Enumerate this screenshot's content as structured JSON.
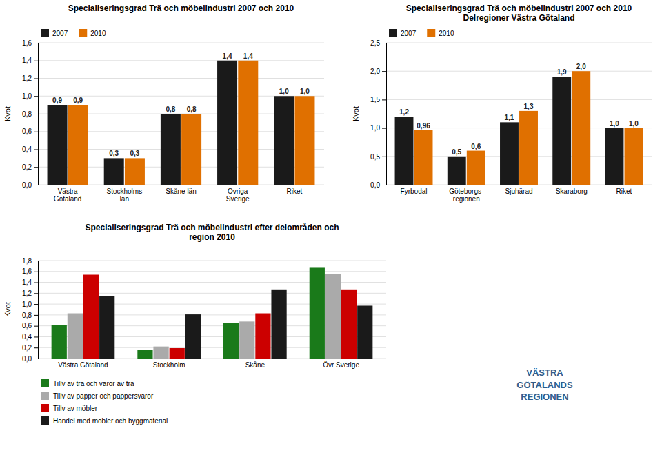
{
  "chart_data": [
    {
      "type": "bar",
      "title": "Specialiseringsgrad Trä och möbelindustri 2007 och 2010",
      "ylabel": "Kvot",
      "categories": [
        "Västra\nGötaland",
        "Stockholms\nlän",
        "Skåne län",
        "Övriga\nSverige",
        "Riket"
      ],
      "series": [
        {
          "name": "2007",
          "color": "#1a1a1a",
          "values": [
            0.9,
            0.3,
            0.8,
            1.4,
            1.0
          ],
          "value_labels": [
            "0,9",
            "0,3",
            "0,8",
            "1,4",
            "1,0"
          ]
        },
        {
          "name": "2010",
          "color": "#e07000",
          "values": [
            0.9,
            0.3,
            0.8,
            1.4,
            1.0
          ],
          "value_labels": [
            "0,9",
            "0,3",
            "0,8",
            "1,4",
            "1,0"
          ]
        }
      ],
      "ylim": [
        0,
        1.6
      ],
      "yticks": [
        {
          "value": 0.0,
          "label": "0,0"
        },
        {
          "value": 0.2,
          "label": "0,2"
        },
        {
          "value": 0.4,
          "label": "0,4"
        },
        {
          "value": 0.6,
          "label": "0,6"
        },
        {
          "value": 0.8,
          "label": "0,8"
        },
        {
          "value": 1.0,
          "label": "1,0"
        },
        {
          "value": 1.2,
          "label": "1,2"
        },
        {
          "value": 1.4,
          "label": "1,4"
        },
        {
          "value": 1.6,
          "label": "1,6"
        }
      ],
      "grid": true,
      "legend": "upper left",
      "data_labels": true
    },
    {
      "type": "bar",
      "title": "Specialiseringsgrad Trä och möbelindustri 2007 och 2010\nDelregioner Västra Götaland",
      "ylabel": "Kvot",
      "categories": [
        "Fyrbodal",
        "Göteborgs-\nregionen",
        "Sjuhärad",
        "Skaraborg",
        "Riket"
      ],
      "series": [
        {
          "name": "2007",
          "color": "#1a1a1a",
          "values": [
            1.2,
            0.5,
            1.1,
            1.9,
            1.0
          ],
          "value_labels": [
            "1,2",
            "0,5",
            "1,1",
            "1,9",
            "1,0"
          ]
        },
        {
          "name": "2010",
          "color": "#e07000",
          "values": [
            0.96,
            0.6,
            1.3,
            2.0,
            1.0
          ],
          "value_labels": [
            "0,96",
            "0,6",
            "1,3",
            "2,0",
            "1,0"
          ]
        }
      ],
      "ylim": [
        0,
        2.5
      ],
      "yticks": [
        {
          "value": 0.0,
          "label": "0,0"
        },
        {
          "value": 0.5,
          "label": "0,5"
        },
        {
          "value": 1.0,
          "label": "1,0"
        },
        {
          "value": 1.5,
          "label": "1,5"
        },
        {
          "value": 2.0,
          "label": "2,0"
        },
        {
          "value": 2.5,
          "label": "2,5"
        }
      ],
      "grid": true,
      "legend": "upper left",
      "data_labels": true
    },
    {
      "type": "bar",
      "title": "Specialiseringsgrad Trä och möbelindustri efter delområden och\nregion 2010",
      "ylabel": "Kvot",
      "categories": [
        "Västra Götaland",
        "Stockholm",
        "Skåne",
        "Övr Sverige"
      ],
      "series": [
        {
          "name": "Tillv av trä och varor av trä",
          "color": "#1a7a1a",
          "values": [
            0.61,
            0.16,
            0.65,
            1.68
          ]
        },
        {
          "name": "Tillv av papper och pappersvaror",
          "color": "#aaaaaa",
          "values": [
            0.83,
            0.22,
            0.68,
            1.55
          ]
        },
        {
          "name": "Tillv av möbler",
          "color": "#cc0000",
          "values": [
            1.54,
            0.19,
            0.83,
            1.27
          ]
        },
        {
          "name": "Handel med möbler och byggmaterial",
          "color": "#1a1a1a",
          "values": [
            1.15,
            0.81,
            1.27,
            0.97
          ]
        }
      ],
      "ylim": [
        0,
        1.8
      ],
      "yticks": [
        {
          "value": 0.0,
          "label": "0,0"
        },
        {
          "value": 0.2,
          "label": "0,2"
        },
        {
          "value": 0.4,
          "label": "0,4"
        },
        {
          "value": 0.6,
          "label": "0,6"
        },
        {
          "value": 0.8,
          "label": "0,8"
        },
        {
          "value": 1.0,
          "label": "1,0"
        },
        {
          "value": 1.2,
          "label": "1,2"
        },
        {
          "value": 1.4,
          "label": "1,4"
        },
        {
          "value": 1.6,
          "label": "1,6"
        },
        {
          "value": 1.8,
          "label": "1,8"
        }
      ],
      "grid": true,
      "legend": "lower left",
      "data_labels": false,
      "annotations": [
        "VÄSTRA\nGÖTALANDS\nREGIONEN"
      ]
    }
  ]
}
